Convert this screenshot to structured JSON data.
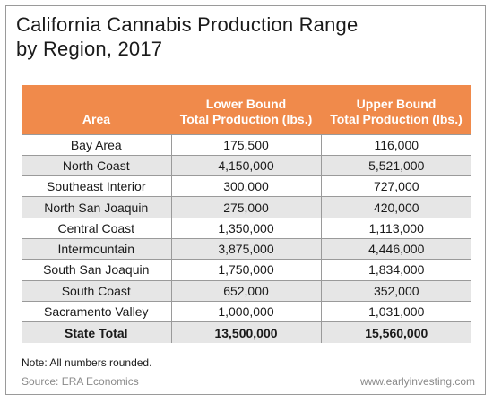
{
  "chart_data": {
    "type": "table",
    "title_lines": [
      "California Cannabis Production Range",
      "by Region, 2017"
    ],
    "columns": [
      {
        "lines": [
          "Area"
        ]
      },
      {
        "lines": [
          "Lower Bound",
          "Total Production (lbs.)"
        ]
      },
      {
        "lines": [
          "Upper Bound",
          "Total Production (lbs.)"
        ]
      }
    ],
    "rows": [
      {
        "area": "Bay Area",
        "lower": "175,500",
        "upper": "116,000"
      },
      {
        "area": "North Coast",
        "lower": "4,150,000",
        "upper": "5,521,000"
      },
      {
        "area": "Southeast Interior",
        "lower": "300,000",
        "upper": "727,000"
      },
      {
        "area": "North San Joaquin",
        "lower": "275,000",
        "upper": "420,000"
      },
      {
        "area": "Central Coast",
        "lower": "1,350,000",
        "upper": "1,113,000"
      },
      {
        "area": "Intermountain",
        "lower": "3,875,000",
        "upper": "4,446,000"
      },
      {
        "area": "South San Joaquin",
        "lower": "1,750,000",
        "upper": "1,834,000"
      },
      {
        "area": "South Coast",
        "lower": "652,000",
        "upper": "352,000"
      },
      {
        "area": "Sacramento Valley",
        "lower": "1,000,000",
        "upper": "1,031,000"
      }
    ],
    "total": {
      "area": "State Total",
      "lower": "13,500,000",
      "upper": "15,560,000"
    },
    "note": "Note: All numbers rounded.",
    "source": "Source: ERA Economics",
    "website": "www.earlyinvesting.com"
  },
  "colors": {
    "header_bg": "#f08a4b",
    "stripe_bg": "#e6e6e6"
  }
}
